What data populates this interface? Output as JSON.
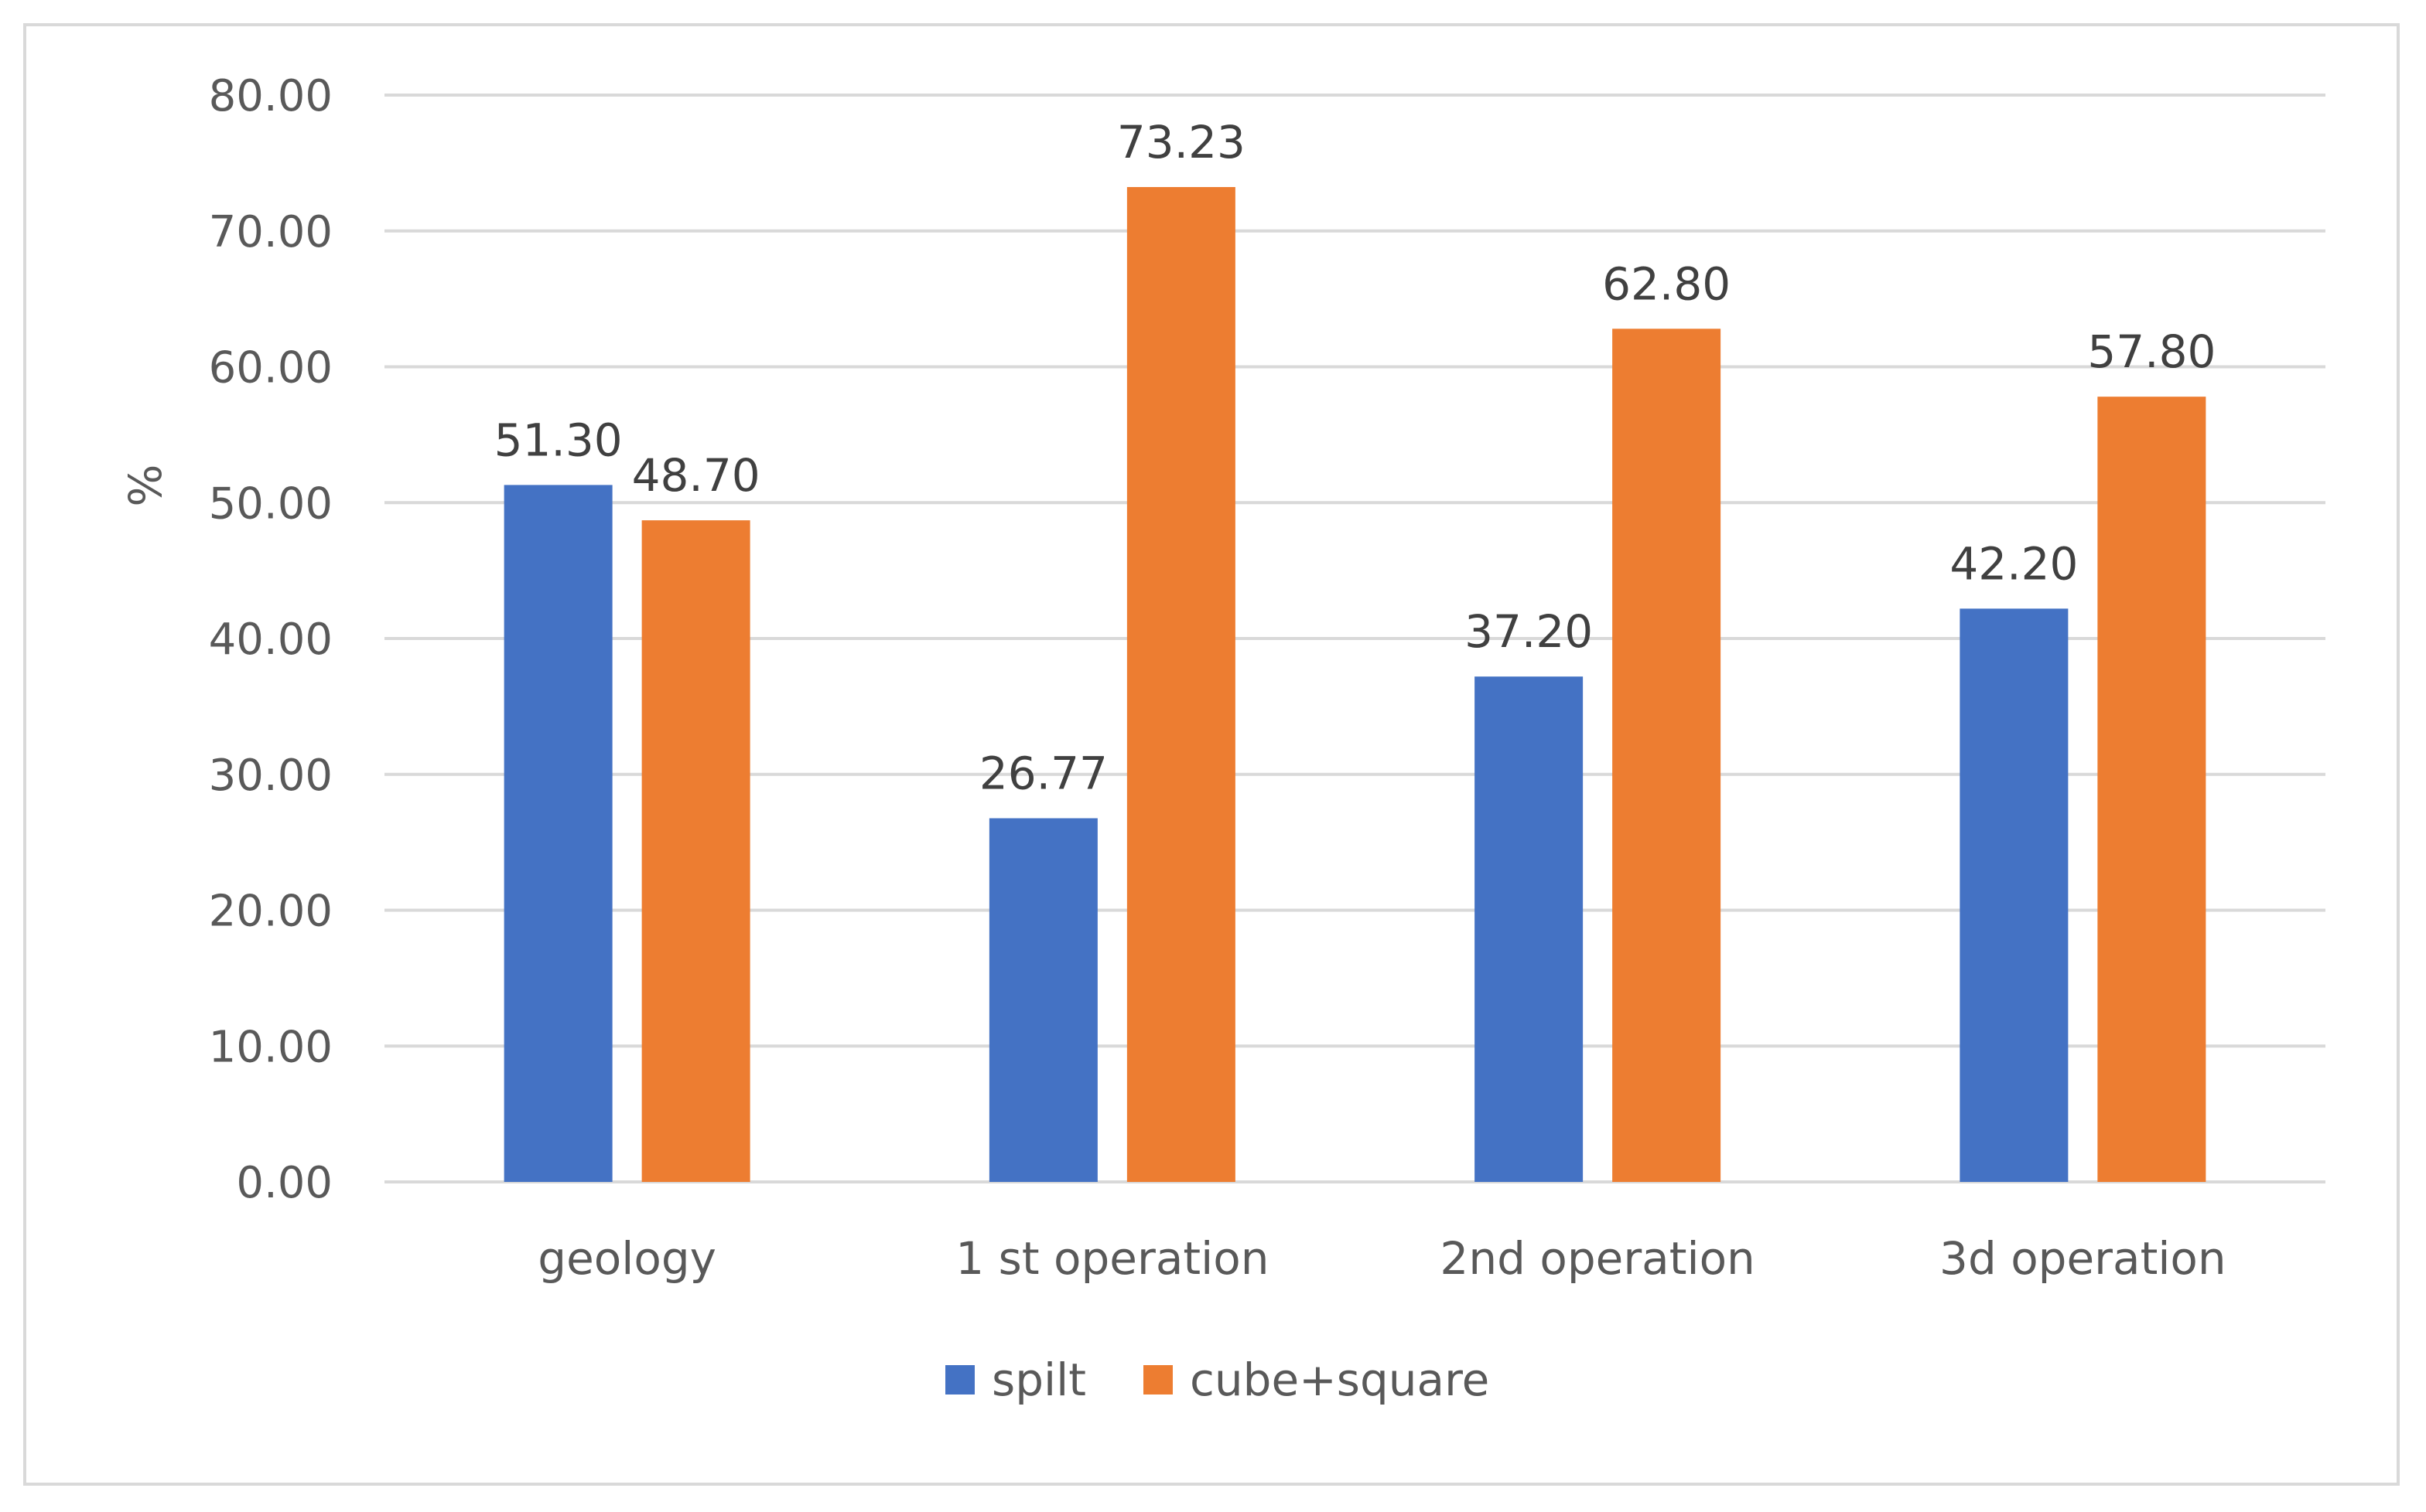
{
  "chart_data": {
    "type": "bar",
    "title": "",
    "xlabel": "",
    "ylabel": "%",
    "ylim": [
      0,
      80
    ],
    "yticks": [
      "0.00",
      "10.00",
      "20.00",
      "30.00",
      "40.00",
      "50.00",
      "60.00",
      "70.00",
      "80.00"
    ],
    "tick_values": [
      0,
      10,
      20,
      30,
      40,
      50,
      60,
      70,
      80
    ],
    "grid": true,
    "legend_position": "bottom",
    "categories": [
      "geology",
      "1 st operation",
      "2nd  operation",
      "3d operation"
    ],
    "series": [
      {
        "name": "spilt",
        "color": "#4472C4",
        "values": [
          51.3,
          26.77,
          37.2,
          42.2
        ],
        "labels": [
          "51.30",
          "26.77",
          "37.20",
          "42.20"
        ]
      },
      {
        "name": "cube+square",
        "color": "#ED7D31",
        "values": [
          48.7,
          73.23,
          62.8,
          57.8
        ],
        "labels": [
          "48.70",
          "73.23",
          "62.80",
          "57.80"
        ]
      }
    ]
  }
}
